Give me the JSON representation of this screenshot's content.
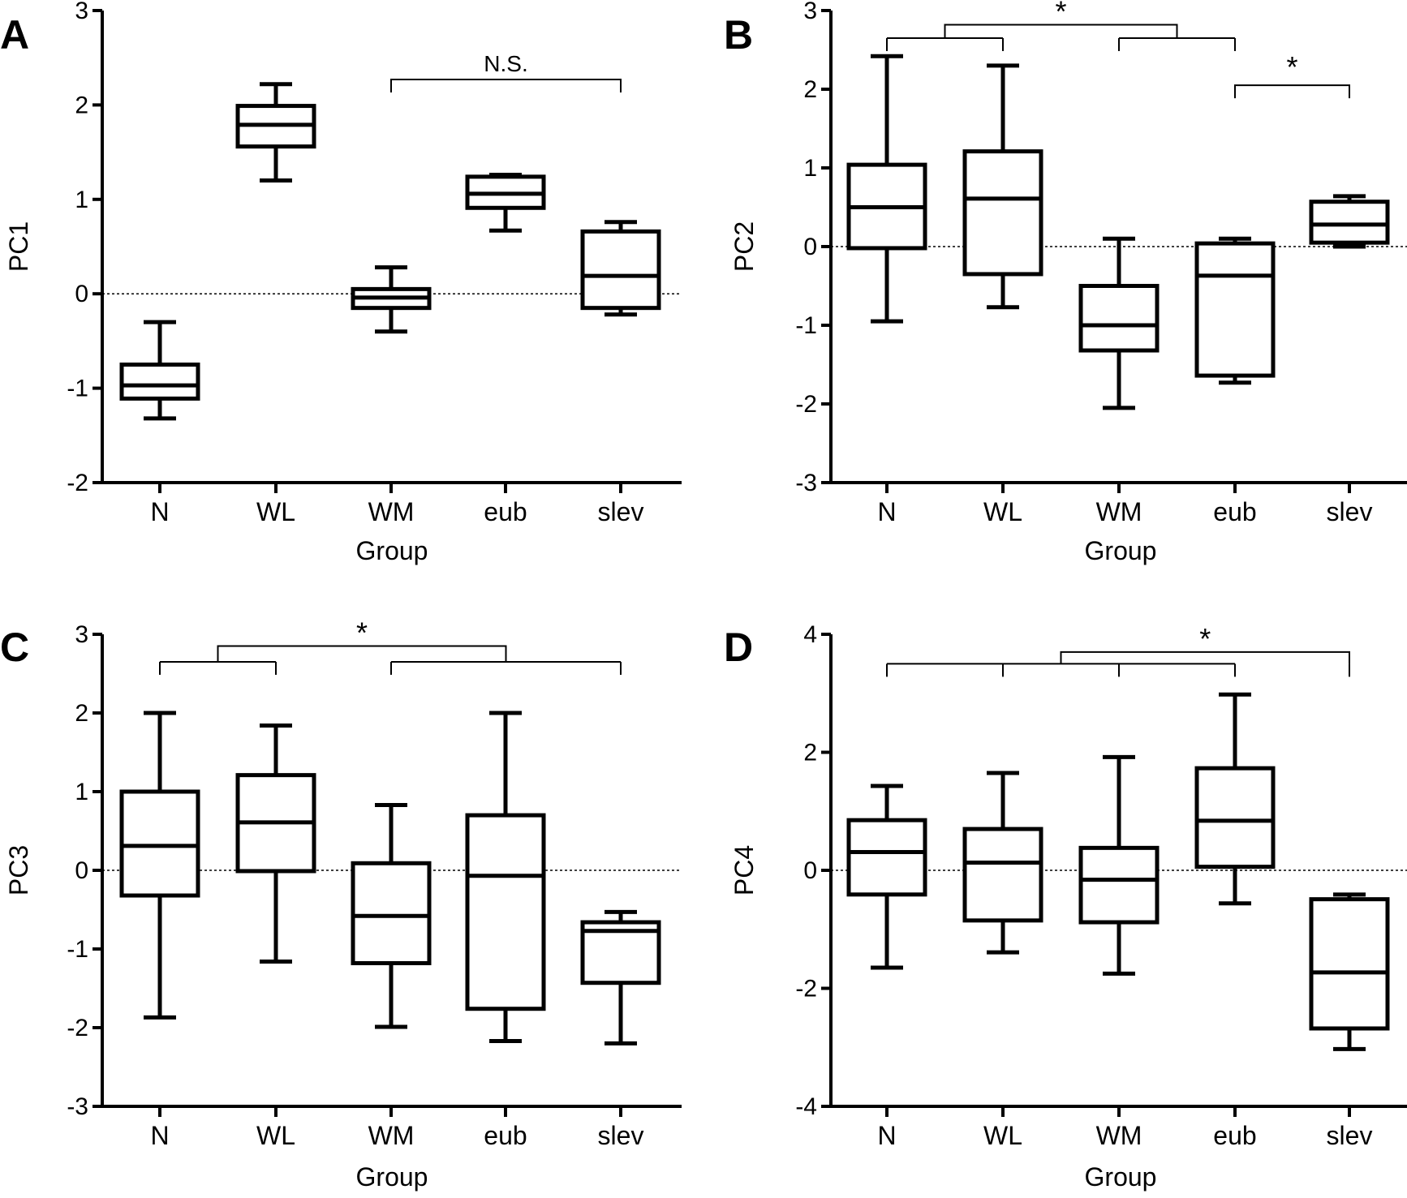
{
  "chart_data": [
    {
      "type": "box",
      "panel_label": "A",
      "xlabel": "Group",
      "ylabel": "PC1",
      "ylim": [
        -2,
        3
      ],
      "yticks": [
        -2,
        -1,
        0,
        1,
        2,
        3
      ],
      "reference_line": 0,
      "categories": [
        "N",
        "WL",
        "WM",
        "eub",
        "slev"
      ],
      "boxes": [
        {
          "category": "N",
          "min": -1.32,
          "q1": -1.11,
          "median": -0.97,
          "q3": -0.75,
          "max": -0.3
        },
        {
          "category": "WL",
          "min": 1.2,
          "q1": 1.56,
          "median": 1.79,
          "q3": 1.99,
          "max": 2.22
        },
        {
          "category": "WM",
          "min": -0.4,
          "q1": -0.15,
          "median": -0.04,
          "q3": 0.05,
          "max": 0.28
        },
        {
          "category": "eub",
          "min": 0.67,
          "q1": 0.91,
          "median": 1.06,
          "q3": 1.24,
          "max": 1.26
        },
        {
          "category": "slev",
          "min": -0.22,
          "q1": -0.15,
          "median": 0.19,
          "q3": 0.66,
          "max": 0.76
        }
      ],
      "annotations": [
        {
          "text": "N.S.",
          "groups": [
            "WM",
            "slev"
          ]
        }
      ]
    },
    {
      "type": "box",
      "panel_label": "B",
      "xlabel": "Group",
      "ylabel": "PC2",
      "ylim": [
        -3,
        3
      ],
      "yticks": [
        -3,
        -2,
        -1,
        0,
        1,
        2,
        3
      ],
      "reference_line": 0,
      "categories": [
        "N",
        "WL",
        "WM",
        "eub",
        "slev"
      ],
      "boxes": [
        {
          "category": "N",
          "min": -0.95,
          "q1": -0.02,
          "median": 0.5,
          "q3": 1.04,
          "max": 2.42
        },
        {
          "category": "WL",
          "min": -0.77,
          "q1": -0.35,
          "median": 0.61,
          "q3": 1.21,
          "max": 2.3
        },
        {
          "category": "WM",
          "min": -2.05,
          "q1": -1.32,
          "median": -1.0,
          "q3": -0.5,
          "max": 0.1
        },
        {
          "category": "eub",
          "min": -1.73,
          "q1": -1.64,
          "median": -0.37,
          "q3": 0.04,
          "max": 0.1
        },
        {
          "category": "slev",
          "min": 0.0,
          "q1": 0.05,
          "median": 0.28,
          "q3": 0.57,
          "max": 0.64
        }
      ],
      "annotations": [
        {
          "text": "*",
          "left_groups": [
            "N",
            "WL"
          ],
          "right_groups": [
            "WM",
            "eub"
          ]
        },
        {
          "text": "*",
          "groups": [
            "eub",
            "slev"
          ]
        }
      ]
    },
    {
      "type": "box",
      "panel_label": "C",
      "xlabel": "Group",
      "ylabel": "PC3",
      "ylim": [
        -3,
        3
      ],
      "yticks": [
        -3,
        -2,
        -1,
        0,
        1,
        2,
        3
      ],
      "reference_line": 0,
      "categories": [
        "N",
        "WL",
        "WM",
        "eub",
        "slev"
      ],
      "boxes": [
        {
          "category": "N",
          "min": -1.87,
          "q1": -0.32,
          "median": 0.31,
          "q3": 1.0,
          "max": 2.0
        },
        {
          "category": "WL",
          "min": -1.16,
          "q1": -0.01,
          "median": 0.61,
          "q3": 1.21,
          "max": 1.84
        },
        {
          "category": "WM",
          "min": -1.99,
          "q1": -1.18,
          "median": -0.58,
          "q3": 0.09,
          "max": 0.83
        },
        {
          "category": "eub",
          "min": -2.17,
          "q1": -1.76,
          "median": -0.07,
          "q3": 0.7,
          "max": 2.0
        },
        {
          "category": "slev",
          "min": -2.2,
          "q1": -1.43,
          "median": -0.77,
          "q3": -0.66,
          "max": -0.53
        }
      ],
      "annotations": [
        {
          "text": "*",
          "left_groups": [
            "N",
            "WL"
          ],
          "right_groups": [
            "WM",
            "slev"
          ]
        }
      ]
    },
    {
      "type": "box",
      "panel_label": "D",
      "xlabel": "Group",
      "ylabel": "PC4",
      "ylim": [
        -4,
        4
      ],
      "yticks": [
        -4,
        -2,
        0,
        2,
        4
      ],
      "reference_line": 0,
      "categories": [
        "N",
        "WL",
        "WM",
        "eub",
        "slev"
      ],
      "boxes": [
        {
          "category": "N",
          "min": -1.65,
          "q1": -0.41,
          "median": 0.31,
          "q3": 0.85,
          "max": 1.43
        },
        {
          "category": "WL",
          "min": -1.39,
          "q1": -0.85,
          "median": 0.13,
          "q3": 0.7,
          "max": 1.65
        },
        {
          "category": "WM",
          "min": -1.75,
          "q1": -0.88,
          "median": -0.16,
          "q3": 0.38,
          "max": 1.92
        },
        {
          "category": "eub",
          "min": -0.56,
          "q1": 0.06,
          "median": 0.84,
          "q3": 1.73,
          "max": 2.98
        },
        {
          "category": "slev",
          "min": -3.03,
          "q1": -2.68,
          "median": -1.73,
          "q3": -0.49,
          "max": -0.41
        }
      ],
      "annotations": [
        {
          "text": "*",
          "left_groups": [
            "N",
            "WL",
            "WM",
            "eub"
          ],
          "right_groups": [
            "slev"
          ]
        }
      ]
    }
  ]
}
